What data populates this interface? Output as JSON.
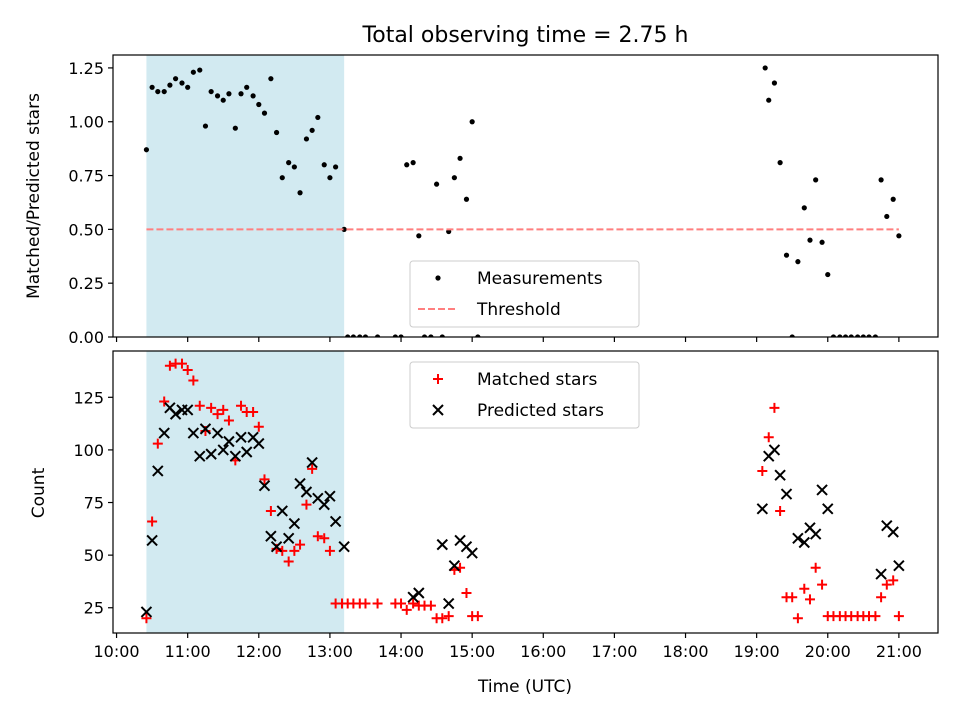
{
  "figure_title": "Total observing time = 2.75 h",
  "chart_data": [
    {
      "type": "scatter",
      "ylabel": "Matched/Predicted stars",
      "xlabel": "",
      "xlim": [
        9.95,
        21.55
      ],
      "ylim": [
        0,
        1.31
      ],
      "yticks": [
        0,
        0.25,
        0.5,
        0.75,
        1.0,
        1.25
      ],
      "ytick_labels": [
        "0.00",
        "0.25",
        "0.50",
        "0.75",
        "1.00",
        "1.25"
      ],
      "shaded_span": [
        10.42,
        13.2
      ],
      "shade_color": "#add8e6",
      "threshold": 0.5,
      "legend_position": "lower center",
      "series": [
        {
          "name": "Measurements",
          "color": "#000000",
          "marker": "dot",
          "x": [
            10.42,
            10.5,
            10.58,
            10.67,
            10.75,
            10.83,
            10.92,
            11.0,
            11.08,
            11.17,
            11.25,
            11.33,
            11.42,
            11.5,
            11.58,
            11.67,
            11.75,
            11.83,
            11.92,
            12.0,
            12.08,
            12.17,
            12.25,
            12.33,
            12.42,
            12.5,
            12.58,
            12.67,
            12.75,
            12.83,
            12.92,
            13.0,
            13.08,
            13.2,
            13.25,
            13.33,
            13.42,
            13.5,
            13.67,
            13.92,
            14.0,
            14.08,
            14.17,
            14.25,
            14.33,
            14.42,
            14.5,
            14.58,
            14.67,
            14.75,
            14.83,
            14.92,
            15.0,
            15.08,
            19.12,
            19.17,
            19.25,
            19.33,
            19.42,
            19.5,
            19.58,
            19.67,
            19.75,
            19.83,
            19.92,
            20.0,
            20.08,
            20.17,
            20.25,
            20.33,
            20.42,
            20.5,
            20.58,
            20.67,
            20.75,
            20.83,
            20.92,
            21.0
          ],
          "y": [
            0.87,
            1.16,
            1.14,
            1.14,
            1.17,
            1.2,
            1.18,
            1.16,
            1.23,
            1.24,
            0.98,
            1.14,
            1.12,
            1.1,
            1.13,
            0.97,
            1.13,
            1.16,
            1.12,
            1.08,
            1.04,
            1.2,
            0.95,
            0.74,
            0.81,
            0.79,
            0.67,
            0.92,
            0.96,
            1.02,
            0.8,
            0.74,
            0.79,
            0.5,
            0.0,
            0.0,
            0.0,
            0.0,
            0.0,
            0.0,
            0.0,
            0.8,
            0.81,
            0.47,
            0.0,
            0.0,
            0.71,
            0.0,
            0.49,
            0.74,
            0.83,
            0.64,
            1.0,
            0.0,
            1.25,
            1.1,
            1.18,
            0.81,
            0.38,
            0.0,
            0.35,
            0.6,
            0.45,
            0.73,
            0.44,
            0.29,
            0.0,
            0.0,
            0.0,
            0.0,
            0.0,
            0.0,
            0.0,
            0.0,
            0.73,
            0.56,
            0.64,
            0.47
          ]
        },
        {
          "name": "Threshold",
          "color": "#ff7f7f",
          "marker": "dashed-line",
          "x": [
            10.42,
            21.0
          ],
          "y": [
            0.5,
            0.5
          ]
        }
      ]
    },
    {
      "type": "scatter",
      "ylabel": "Count",
      "xlabel": "Time (UTC)",
      "xlim": [
        9.95,
        21.55
      ],
      "ylim": [
        13,
        147
      ],
      "yticks": [
        25,
        50,
        75,
        100,
        125
      ],
      "ytick_labels": [
        "25",
        "50",
        "75",
        "100",
        "125"
      ],
      "xticks": [
        10,
        11,
        12,
        13,
        14,
        15,
        16,
        17,
        18,
        19,
        20,
        21
      ],
      "xtick_labels": [
        "10:00",
        "11:00",
        "12:00",
        "13:00",
        "14:00",
        "15:00",
        "16:00",
        "17:00",
        "18:00",
        "19:00",
        "20:00",
        "21:00"
      ],
      "shaded_span": [
        10.42,
        13.2
      ],
      "shade_color": "#add8e6",
      "legend_position": "upper center",
      "series": [
        {
          "name": "Matched stars",
          "color": "#ff0000",
          "marker": "plus",
          "x": [
            10.42,
            10.5,
            10.58,
            10.67,
            10.75,
            10.83,
            10.92,
            11.0,
            11.08,
            11.17,
            11.25,
            11.33,
            11.42,
            11.5,
            11.58,
            11.67,
            11.75,
            11.83,
            11.92,
            12.0,
            12.08,
            12.17,
            12.25,
            12.33,
            12.42,
            12.5,
            12.58,
            12.67,
            12.75,
            12.83,
            12.92,
            13.0,
            13.08,
            13.17,
            13.25,
            13.33,
            13.42,
            13.5,
            13.67,
            13.92,
            14.0,
            14.08,
            14.17,
            14.25,
            14.33,
            14.42,
            14.5,
            14.58,
            14.67,
            14.75,
            14.83,
            14.92,
            15.0,
            15.08,
            19.08,
            19.17,
            19.25,
            19.33,
            19.42,
            19.5,
            19.58,
            19.67,
            19.75,
            19.83,
            19.92,
            20.0,
            20.08,
            20.17,
            20.25,
            20.33,
            20.42,
            20.5,
            20.58,
            20.67,
            20.75,
            20.83,
            20.92,
            21.0
          ],
          "y": [
            20,
            66,
            103,
            123,
            140,
            141,
            141,
            138,
            133,
            121,
            109,
            120,
            117,
            119,
            114,
            95,
            121,
            118,
            118,
            111,
            86,
            71,
            53,
            52,
            47,
            52,
            55,
            74,
            91,
            59,
            58,
            52,
            27,
            27,
            27,
            27,
            27,
            27,
            27,
            27,
            27,
            24,
            27,
            26,
            26,
            26,
            20,
            20,
            21,
            43,
            44,
            32,
            21,
            21,
            90,
            106,
            120,
            71,
            30,
            30,
            20,
            34,
            29,
            44,
            36,
            21,
            21,
            21,
            21,
            21,
            21,
            21,
            21,
            21,
            30,
            36,
            38,
            21
          ]
        },
        {
          "name": "Predicted stars",
          "color": "#000000",
          "marker": "x",
          "x": [
            10.42,
            10.5,
            10.58,
            10.67,
            10.75,
            10.83,
            10.92,
            11.0,
            11.08,
            11.17,
            11.25,
            11.33,
            11.42,
            11.5,
            11.58,
            11.67,
            11.75,
            11.83,
            11.92,
            12.0,
            12.08,
            12.17,
            12.25,
            12.33,
            12.42,
            12.5,
            12.58,
            12.67,
            12.75,
            12.83,
            12.92,
            13.0,
            13.08,
            13.2,
            14.17,
            14.25,
            14.58,
            14.67,
            14.75,
            14.83,
            14.92,
            15.0,
            19.08,
            19.17,
            19.25,
            19.33,
            19.42,
            19.58,
            19.67,
            19.75,
            19.83,
            19.92,
            20.0,
            20.75,
            20.83,
            20.92,
            21.0
          ],
          "y": [
            23,
            57,
            90,
            108,
            120,
            117,
            119,
            119,
            108,
            97,
            110,
            98,
            108,
            100,
            104,
            97,
            106,
            99,
            106,
            103,
            83,
            59,
            54,
            71,
            58,
            65,
            84,
            80,
            94,
            77,
            74,
            78,
            66,
            54,
            30,
            32,
            55,
            27,
            45,
            57,
            54,
            51,
            72,
            97,
            100,
            88,
            79,
            58,
            56,
            63,
            60,
            81,
            72,
            41,
            64,
            61,
            45
          ]
        }
      ]
    }
  ]
}
